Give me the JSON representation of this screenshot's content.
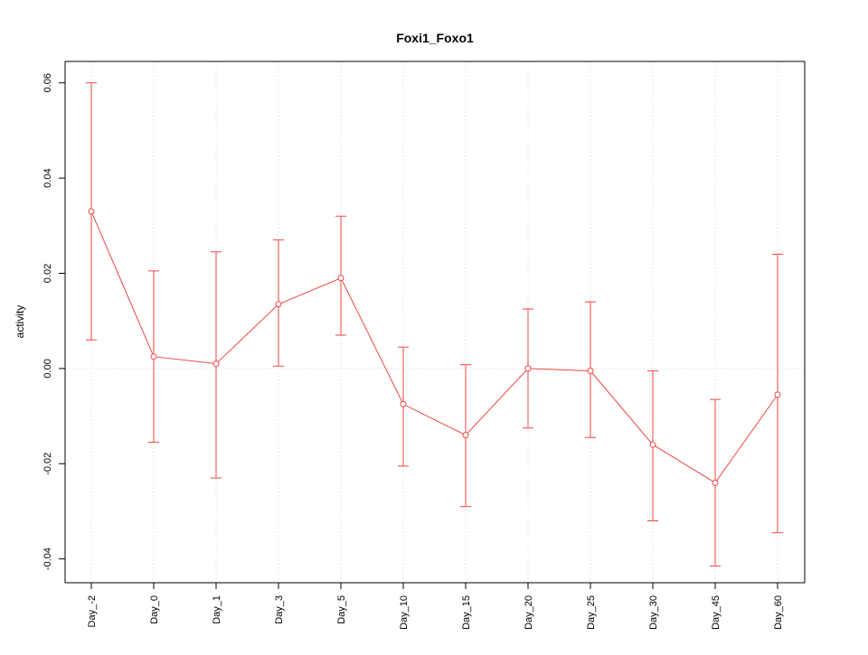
{
  "chart_data": {
    "type": "line",
    "title": "Foxi1_Foxo1",
    "ylabel": "activity",
    "xlabel": "",
    "categories": [
      "Day_-2",
      "Day_0",
      "Day_1",
      "Day_3",
      "Day_5",
      "Day_10",
      "Day_15",
      "Day_20",
      "Day_25",
      "Day_30",
      "Day_45",
      "Day_60"
    ],
    "series": [
      {
        "name": "activity",
        "values": [
          0.033,
          0.0025,
          0.001,
          0.0135,
          0.019,
          -0.0075,
          -0.014,
          0.0,
          -0.0005,
          -0.016,
          -0.024,
          -0.0055
        ],
        "error_high": [
          0.06,
          0.0205,
          0.0245,
          0.027,
          0.032,
          0.0045,
          0.0008,
          0.0125,
          0.014,
          -0.0005,
          -0.0065,
          0.024
        ],
        "error_low": [
          0.006,
          -0.0155,
          -0.023,
          0.0005,
          0.007,
          -0.0205,
          -0.029,
          -0.0125,
          -0.0145,
          -0.032,
          -0.0415,
          -0.0345
        ]
      }
    ],
    "yticks": [
      -0.04,
      -0.02,
      0.0,
      0.02,
      0.04,
      0.06
    ],
    "ylim": [
      -0.045,
      0.0645
    ],
    "grid": "dotted vertical line at each category; dotted horizontal line at y=0",
    "legend_position": "none",
    "marker": "open-circle",
    "colors": {
      "series": "#f04646",
      "grid": "#d9d9d9",
      "axis": "#000000",
      "background": "#ffffff"
    }
  }
}
